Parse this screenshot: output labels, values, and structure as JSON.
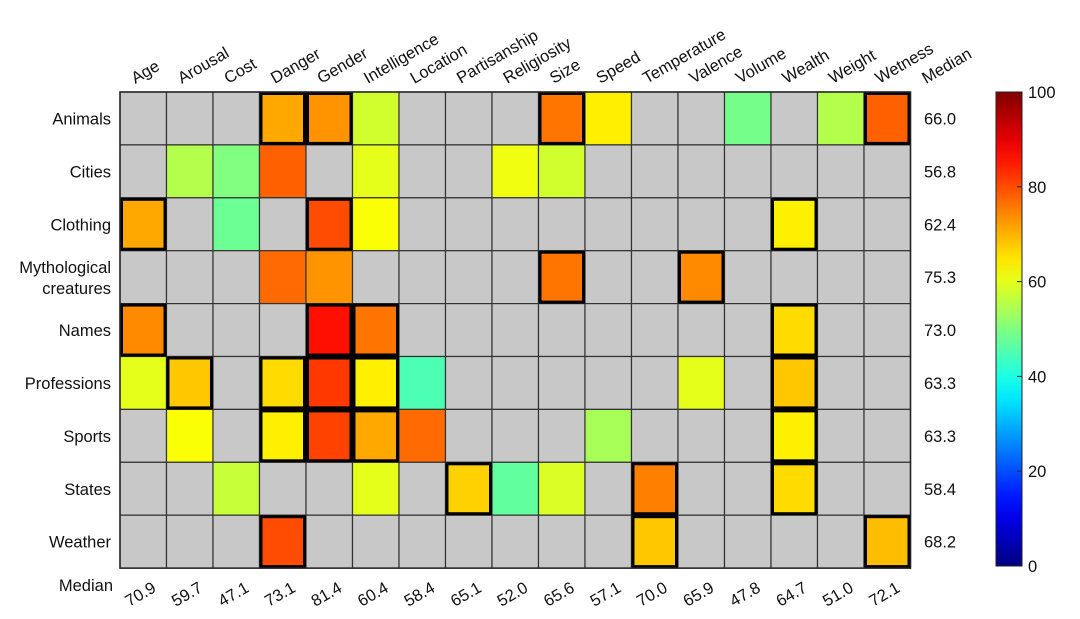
{
  "chart_data": {
    "type": "heatmap",
    "columns": [
      "Age",
      "Arousal",
      "Cost",
      "Danger",
      "Gender",
      "Intelligence",
      "Location",
      "Partisanship",
      "Religiosity",
      "Size",
      "Speed",
      "Temperature",
      "Valence",
      "Volume",
      "Wealth",
      "Weight",
      "Wetness"
    ],
    "rows": [
      "Animals",
      "Cities",
      "Clothing",
      "Mythological creatures",
      "Names",
      "Professions",
      "Sports",
      "States",
      "Weather"
    ],
    "row_label_lines": [
      [
        "Animals"
      ],
      [
        "Cities"
      ],
      [
        "Clothing"
      ],
      [
        "Mythological",
        "creatures"
      ],
      [
        "Names"
      ],
      [
        "Professions"
      ],
      [
        "Sports"
      ],
      [
        "States"
      ],
      [
        "Weather"
      ]
    ],
    "values": [
      [
        null,
        null,
        null,
        71,
        73,
        58,
        null,
        null,
        null,
        76,
        64,
        null,
        null,
        49,
        null,
        55,
        78
      ],
      [
        null,
        55,
        50,
        78,
        null,
        60,
        null,
        null,
        61,
        58,
        null,
        null,
        null,
        null,
        null,
        null,
        null
      ],
      [
        71,
        null,
        48,
        null,
        80,
        62,
        null,
        null,
        null,
        null,
        null,
        null,
        null,
        null,
        64,
        null,
        null
      ],
      [
        null,
        null,
        null,
        77,
        73,
        null,
        null,
        null,
        null,
        76,
        null,
        null,
        74,
        null,
        null,
        null,
        null
      ],
      [
        74,
        null,
        null,
        null,
        86,
        76,
        null,
        null,
        null,
        null,
        null,
        null,
        null,
        null,
        66,
        null,
        null
      ],
      [
        60,
        68,
        null,
        66,
        82,
        64,
        45,
        null,
        null,
        null,
        null,
        null,
        60,
        null,
        68,
        null,
        null
      ],
      [
        null,
        62,
        null,
        64,
        81,
        71,
        77,
        null,
        null,
        null,
        54,
        null,
        null,
        null,
        64,
        null,
        null
      ],
      [
        null,
        null,
        57,
        null,
        null,
        60,
        null,
        67,
        47,
        59,
        null,
        75,
        null,
        null,
        66,
        null,
        null
      ],
      [
        null,
        null,
        null,
        80,
        null,
        null,
        null,
        null,
        null,
        null,
        null,
        68,
        null,
        null,
        null,
        null,
        69
      ]
    ],
    "highlighted": [
      [
        0,
        3
      ],
      [
        0,
        4
      ],
      [
        0,
        9
      ],
      [
        0,
        16
      ],
      [
        2,
        0
      ],
      [
        2,
        4
      ],
      [
        2,
        14
      ],
      [
        3,
        9
      ],
      [
        3,
        12
      ],
      [
        4,
        0
      ],
      [
        4,
        4
      ],
      [
        4,
        5
      ],
      [
        4,
        14
      ],
      [
        5,
        1
      ],
      [
        5,
        3
      ],
      [
        5,
        4
      ],
      [
        5,
        5
      ],
      [
        5,
        14
      ],
      [
        6,
        3
      ],
      [
        6,
        4
      ],
      [
        6,
        5
      ],
      [
        6,
        14
      ],
      [
        7,
        7
      ],
      [
        7,
        11
      ],
      [
        7,
        14
      ],
      [
        8,
        3
      ],
      [
        8,
        11
      ],
      [
        8,
        16
      ]
    ],
    "row_median_label": "Median",
    "row_medians": [
      "66.0",
      "56.8",
      "62.4",
      "75.3",
      "73.0",
      "63.3",
      "63.3",
      "58.4",
      "68.2"
    ],
    "col_median_label": "Median",
    "col_medians": [
      "70.9",
      "59.7",
      "47.1",
      "73.1",
      "81.4",
      "60.4",
      "58.4",
      "65.1",
      "52.0",
      "65.6",
      "57.1",
      "70.0",
      "65.9",
      "47.8",
      "64.7",
      "51.0",
      "72.1"
    ],
    "colorbar": {
      "min": 0,
      "max": 100,
      "ticks": [
        "0",
        "20",
        "40",
        "60",
        "80",
        "100"
      ],
      "colormap": "jet"
    },
    "missing_color": "#c8c8c8",
    "grid": true
  }
}
